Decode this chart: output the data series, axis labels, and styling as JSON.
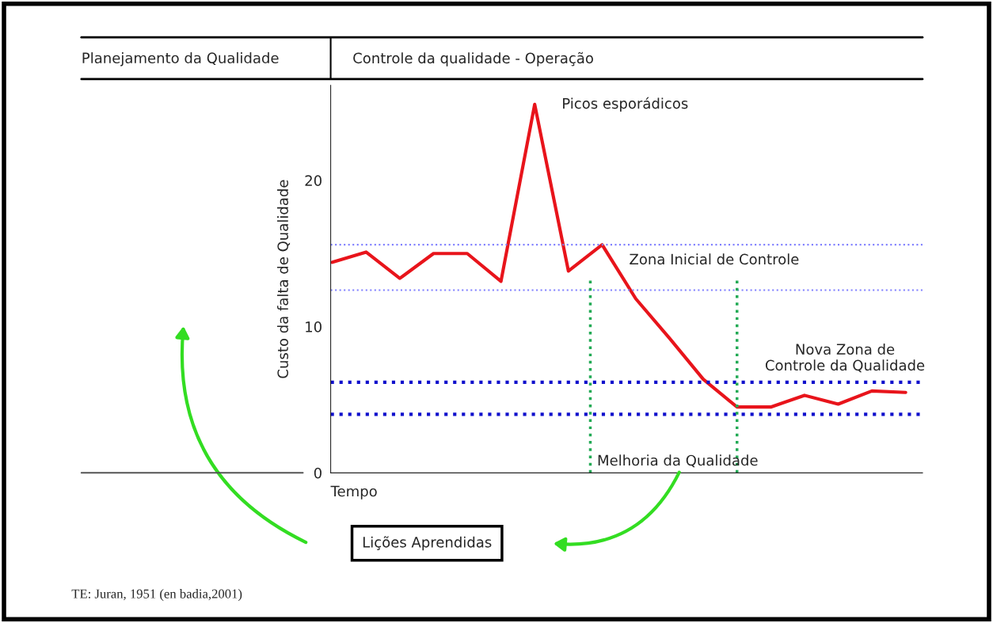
{
  "chart_data": {
    "type": "line",
    "ylabel": "Custo da falta de Qualidade",
    "xlabel": "Tempo",
    "categories": [
      null,
      null,
      null,
      null,
      null,
      null,
      null,
      null,
      null,
      null,
      null,
      null,
      null,
      null,
      null,
      null,
      null,
      null
    ],
    "series": [
      {
        "color": "#e8141b",
        "values": [
          14.4,
          15.1,
          13.3,
          15.0,
          15.0,
          13.1,
          25.2,
          13.8,
          15.6,
          11.9,
          9.2,
          6.4,
          4.5,
          4.5,
          5.3,
          4.7,
          5.6,
          5.5
        ]
      }
    ],
    "ylim": [
      0,
      26.5
    ],
    "yticks": [
      0,
      10,
      20
    ],
    "grid": false,
    "legend": false,
    "marker": "none",
    "line_style": "solid",
    "ref_lines": [
      {
        "axis": "y",
        "value": 15.6,
        "label": "Zona Inicial de Controle",
        "color": "#8080ff",
        "line_style": "dotted"
      },
      {
        "axis": "y",
        "value": 12.5,
        "color": "#8080ff",
        "line_style": "dotted"
      },
      {
        "axis": "y",
        "value": 6.2,
        "label": "Nova Zona de\nControle da Qualidade",
        "color": "#1010cc",
        "line_style": "dotted"
      },
      {
        "axis": "y",
        "value": 4.0,
        "color": "#1010cc",
        "line_style": "dotted"
      }
    ],
    "annotations": [
      "Planejamento da Qualidade",
      "Controle da qualidade - Operação",
      "Picos esporádicos",
      "Lições Aprendidas",
      "TE: Juran, 1951 (en badia,2001)",
      "Melhoria da Qualidade"
    ]
  }
}
